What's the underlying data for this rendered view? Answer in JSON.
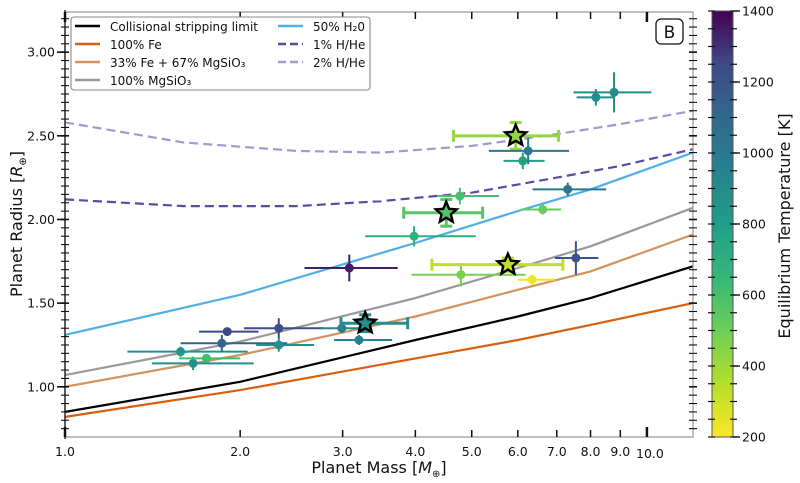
{
  "chart_data": {
    "type": "scatter",
    "panel_label": "B",
    "xlabel": "Planet Mass [M⊕]",
    "ylabel": "Planet Radius [R⊕]",
    "xscale": "log",
    "xlim": [
      1.0,
      12.0
    ],
    "ylim": [
      0.7,
      3.24
    ],
    "xticks": [
      {
        "value": 1.0,
        "label": "1.0"
      },
      {
        "value": 2.0,
        "label": "2.0"
      },
      {
        "value": 3.0,
        "label": "3.0"
      },
      {
        "value": 4.0,
        "label": "4.0"
      },
      {
        "value": 5.0,
        "label": "5.0"
      },
      {
        "value": 6.0,
        "label": "6.0"
      },
      {
        "value": 7.0,
        "label": "7.0"
      },
      {
        "value": 8.0,
        "label": "8.0"
      },
      {
        "value": 9.0,
        "label": "9.0"
      },
      {
        "value": 10.0,
        "label": "10.0"
      }
    ],
    "yticks": [
      {
        "value": 1.0,
        "label": "1.00"
      },
      {
        "value": 1.5,
        "label": "1.50"
      },
      {
        "value": 2.0,
        "label": "2.00"
      },
      {
        "value": 2.5,
        "label": "2.50"
      },
      {
        "value": 3.0,
        "label": "3.00"
      }
    ],
    "legend_position": "top-left",
    "curves": [
      {
        "name": "Collisional stripping limit",
        "color": "#000000",
        "dash": false,
        "x": [
          1.0,
          2.0,
          4.0,
          6.0,
          8.0,
          12.0
        ],
        "y": [
          0.85,
          1.03,
          1.28,
          1.42,
          1.53,
          1.72
        ]
      },
      {
        "name": "100% Fe",
        "color": "#d95f0e",
        "dash": false,
        "x": [
          1.0,
          2.0,
          4.0,
          6.0,
          8.0,
          12.0
        ],
        "y": [
          0.82,
          0.98,
          1.17,
          1.28,
          1.37,
          1.5
        ]
      },
      {
        "name": "33% Fe + 67% MgSiO₃",
        "color": "#d2935e",
        "dash": false,
        "x": [
          1.0,
          2.0,
          4.0,
          6.0,
          8.0,
          12.0
        ],
        "y": [
          1.0,
          1.19,
          1.42,
          1.58,
          1.69,
          1.91
        ]
      },
      {
        "name": "100% MgSiO₃",
        "color": "#999999",
        "dash": false,
        "x": [
          1.0,
          2.0,
          4.0,
          6.0,
          8.0,
          12.0
        ],
        "y": [
          1.07,
          1.27,
          1.53,
          1.71,
          1.84,
          2.07
        ]
      },
      {
        "name": "50% H₂0",
        "color": "#4fb0e5",
        "dash": false,
        "x": [
          1.0,
          2.0,
          4.0,
          6.0,
          8.0,
          12.0
        ],
        "y": [
          1.31,
          1.55,
          1.86,
          2.05,
          2.18,
          2.4
        ]
      },
      {
        "name": "1% H/He",
        "color": "#5e4a9e",
        "dash": true,
        "x": [
          1.0,
          1.6,
          2.5,
          3.5,
          5.0,
          7.0,
          9.0,
          12.0
        ],
        "y": [
          2.12,
          2.08,
          2.08,
          2.11,
          2.16,
          2.25,
          2.32,
          2.42
        ]
      },
      {
        "name": "2% H/He",
        "color": "#a598d0",
        "dash": true,
        "x": [
          1.0,
          1.6,
          2.5,
          3.5,
          5.0,
          7.0,
          9.0,
          12.0
        ],
        "y": [
          2.58,
          2.46,
          2.41,
          2.4,
          2.44,
          2.51,
          2.57,
          2.65
        ]
      }
    ],
    "points": [
      {
        "mass": 1.58,
        "mass_err": [
          0.3,
          0.48
        ],
        "radius": 1.21,
        "radius_err": [
          0.03,
          0.03
        ],
        "teq": 850,
        "marker": "circle"
      },
      {
        "mass": 1.66,
        "mass_err": [
          0.25,
          0.45
        ],
        "radius": 1.14,
        "radius_err": [
          0.04,
          0.04
        ],
        "teq": 880,
        "marker": "circle"
      },
      {
        "mass": 1.75,
        "mass_err": [
          0.18,
          0.25
        ],
        "radius": 1.17,
        "radius_err": [
          0.02,
          0.02
        ],
        "teq": 620,
        "marker": "circle"
      },
      {
        "mass": 1.86,
        "mass_err": [
          0.28,
          0.55
        ],
        "radius": 1.26,
        "radius_err": [
          0.05,
          0.05
        ],
        "teq": 1120,
        "marker": "circle"
      },
      {
        "mass": 1.9,
        "mass_err": [
          0.2,
          0.25
        ],
        "radius": 1.33,
        "radius_err": [
          0.02,
          0.02
        ],
        "teq": 1250,
        "marker": "circle"
      },
      {
        "mass": 2.33,
        "mass_err": [
          0.3,
          0.45
        ],
        "radius": 1.35,
        "radius_err": [
          0.06,
          0.06
        ],
        "teq": 1230,
        "marker": "circle"
      },
      {
        "mass": 2.33,
        "mass_err": [
          0.2,
          0.35
        ],
        "radius": 1.25,
        "radius_err": [
          0.04,
          0.04
        ],
        "teq": 880,
        "marker": "circle"
      },
      {
        "mass": 2.99,
        "mass_err": [
          0.25,
          0.25
        ],
        "radius": 1.35,
        "radius_err": [
          0.03,
          0.03
        ],
        "teq": 960,
        "marker": "circle"
      },
      {
        "mass": 3.2,
        "mass_err": [
          0.3,
          0.45
        ],
        "radius": 1.28,
        "radius_err": [
          0.03,
          0.03
        ],
        "teq": 960,
        "marker": "circle"
      },
      {
        "mass": 3.28,
        "mass_err": [
          0.3,
          0.6
        ],
        "radius": 1.38,
        "radius_err": [
          0.05,
          0.05
        ],
        "teq": 880,
        "marker": "star"
      },
      {
        "mass": 3.08,
        "mass_err": [
          0.5,
          0.65
        ],
        "radius": 1.71,
        "radius_err": [
          0.08,
          0.08
        ],
        "teq": 1340,
        "marker": "circle"
      },
      {
        "mass": 3.98,
        "mass_err": [
          0.7,
          1.1
        ],
        "radius": 1.9,
        "radius_err": [
          0.06,
          0.06
        ],
        "teq": 700,
        "marker": "circle"
      },
      {
        "mass": 4.52,
        "mass_err": [
          0.7,
          0.7
        ],
        "radius": 2.04,
        "radius_err": [
          0.08,
          0.08
        ],
        "teq": 560,
        "marker": "star"
      },
      {
        "mass": 4.77,
        "mass_err": [
          0.4,
          0.8
        ],
        "radius": 2.14,
        "radius_err": [
          0.05,
          0.05
        ],
        "teq": 600,
        "marker": "circle"
      },
      {
        "mass": 4.79,
        "mass_err": [
          0.85,
          1.4
        ],
        "radius": 1.67,
        "radius_err": [
          0.07,
          0.07
        ],
        "teq": 480,
        "marker": "circle"
      },
      {
        "mass": 5.77,
        "mass_err": [
          1.5,
          1.4
        ],
        "radius": 1.73,
        "radius_err": [
          0.04,
          0.04
        ],
        "teq": 330,
        "marker": "star"
      },
      {
        "mass": 5.95,
        "mass_err": [
          1.3,
          1.1
        ],
        "radius": 2.5,
        "radius_err": [
          0.08,
          0.08
        ],
        "teq": 420,
        "marker": "star"
      },
      {
        "mass": 6.12,
        "mass_err": [
          0.45,
          0.55
        ],
        "radius": 2.35,
        "radius_err": [
          0.05,
          0.05
        ],
        "teq": 780,
        "marker": "circle"
      },
      {
        "mass": 6.25,
        "mass_err": [
          0.9,
          1.1
        ],
        "radius": 2.41,
        "radius_err": [
          0.08,
          0.08
        ],
        "teq": 1000,
        "marker": "circle"
      },
      {
        "mass": 6.35,
        "mass_err": [
          0.35,
          0.6
        ],
        "radius": 1.64,
        "radius_err": [
          0.03,
          0.03
        ],
        "teq": 230,
        "marker": "circle"
      },
      {
        "mass": 6.62,
        "mass_err": [
          0.55,
          0.5
        ],
        "radius": 2.06,
        "radius_err": [
          0.03,
          0.03
        ],
        "teq": 520,
        "marker": "circle"
      },
      {
        "mass": 7.31,
        "mass_err": [
          0.95,
          1.2
        ],
        "radius": 2.18,
        "radius_err": [
          0.04,
          0.04
        ],
        "teq": 1020,
        "marker": "circle"
      },
      {
        "mass": 7.55,
        "mass_err": [
          0.6,
          0.7
        ],
        "radius": 1.77,
        "radius_err": [
          0.1,
          0.1
        ],
        "teq": 1200,
        "marker": "circle"
      },
      {
        "mass": 8.17,
        "mass_err": [
          0.6,
          0.6
        ],
        "radius": 2.73,
        "radius_err": [
          0.05,
          0.05
        ],
        "teq": 880,
        "marker": "circle"
      },
      {
        "mass": 8.78,
        "mass_err": [
          1.3,
          1.4
        ],
        "radius": 2.76,
        "radius_err": [
          0.12,
          0.12
        ],
        "teq": 900,
        "marker": "circle"
      }
    ],
    "colorbar": {
      "label": "Equilibrium Temperature [K]",
      "colormap": "viridis",
      "range": [
        200,
        1400
      ],
      "ticks": [
        {
          "value": 200,
          "label": "200"
        },
        {
          "value": 400,
          "label": "400"
        },
        {
          "value": 600,
          "label": "600"
        },
        {
          "value": 800,
          "label": "800"
        },
        {
          "value": 1000,
          "label": "1000"
        },
        {
          "value": 1200,
          "label": "1200"
        },
        {
          "value": 1400,
          "label": "1400"
        }
      ]
    }
  }
}
